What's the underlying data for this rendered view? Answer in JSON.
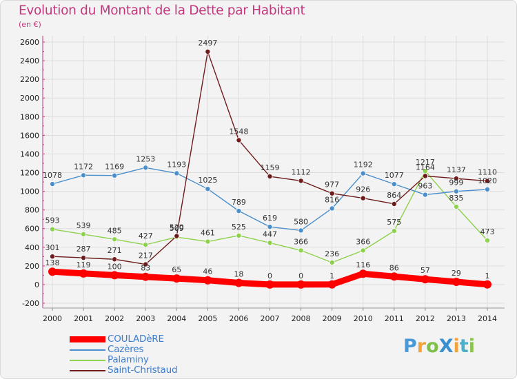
{
  "title": "Evolution du Montant de la Dette par Habitant",
  "subtitle": "(en €)",
  "logo": "ProXiti",
  "chart_data": {
    "type": "line",
    "x": [
      2000,
      2001,
      2002,
      2003,
      2004,
      2005,
      2006,
      2007,
      2008,
      2009,
      2010,
      2011,
      2012,
      2013,
      2014
    ],
    "ylim": [
      -200,
      2600
    ],
    "yticks": [
      -200,
      0,
      200,
      400,
      600,
      800,
      1000,
      1200,
      1400,
      1600,
      1800,
      2000,
      2200,
      2400,
      2600
    ],
    "grid": true,
    "legend_position": "bottom-left",
    "series": [
      {
        "name": "COULADèRE",
        "color": "#ff0000",
        "values": [
          138,
          119,
          100,
          83,
          65,
          46,
          18,
          0,
          0,
          1,
          116,
          86,
          57,
          29,
          1
        ]
      },
      {
        "name": "Cazères",
        "color": "#4a8ecb",
        "values": [
          1078,
          1172,
          1169,
          1253,
          1193,
          1025,
          789,
          619,
          580,
          816,
          1192,
          1077,
          963,
          999,
          1020
        ]
      },
      {
        "name": "Palaminy",
        "color": "#8ed14c",
        "values": [
          593,
          539,
          485,
          427,
          509,
          461,
          525,
          447,
          366,
          236,
          366,
          575,
          1217,
          835,
          473
        ]
      },
      {
        "name": "Saint-Christaud",
        "color": "#6e1b1b",
        "values": [
          301,
          287,
          271,
          217,
          520,
          2497,
          1548,
          1159,
          1112,
          977,
          926,
          864,
          1164,
          1137,
          1110
        ]
      }
    ]
  }
}
